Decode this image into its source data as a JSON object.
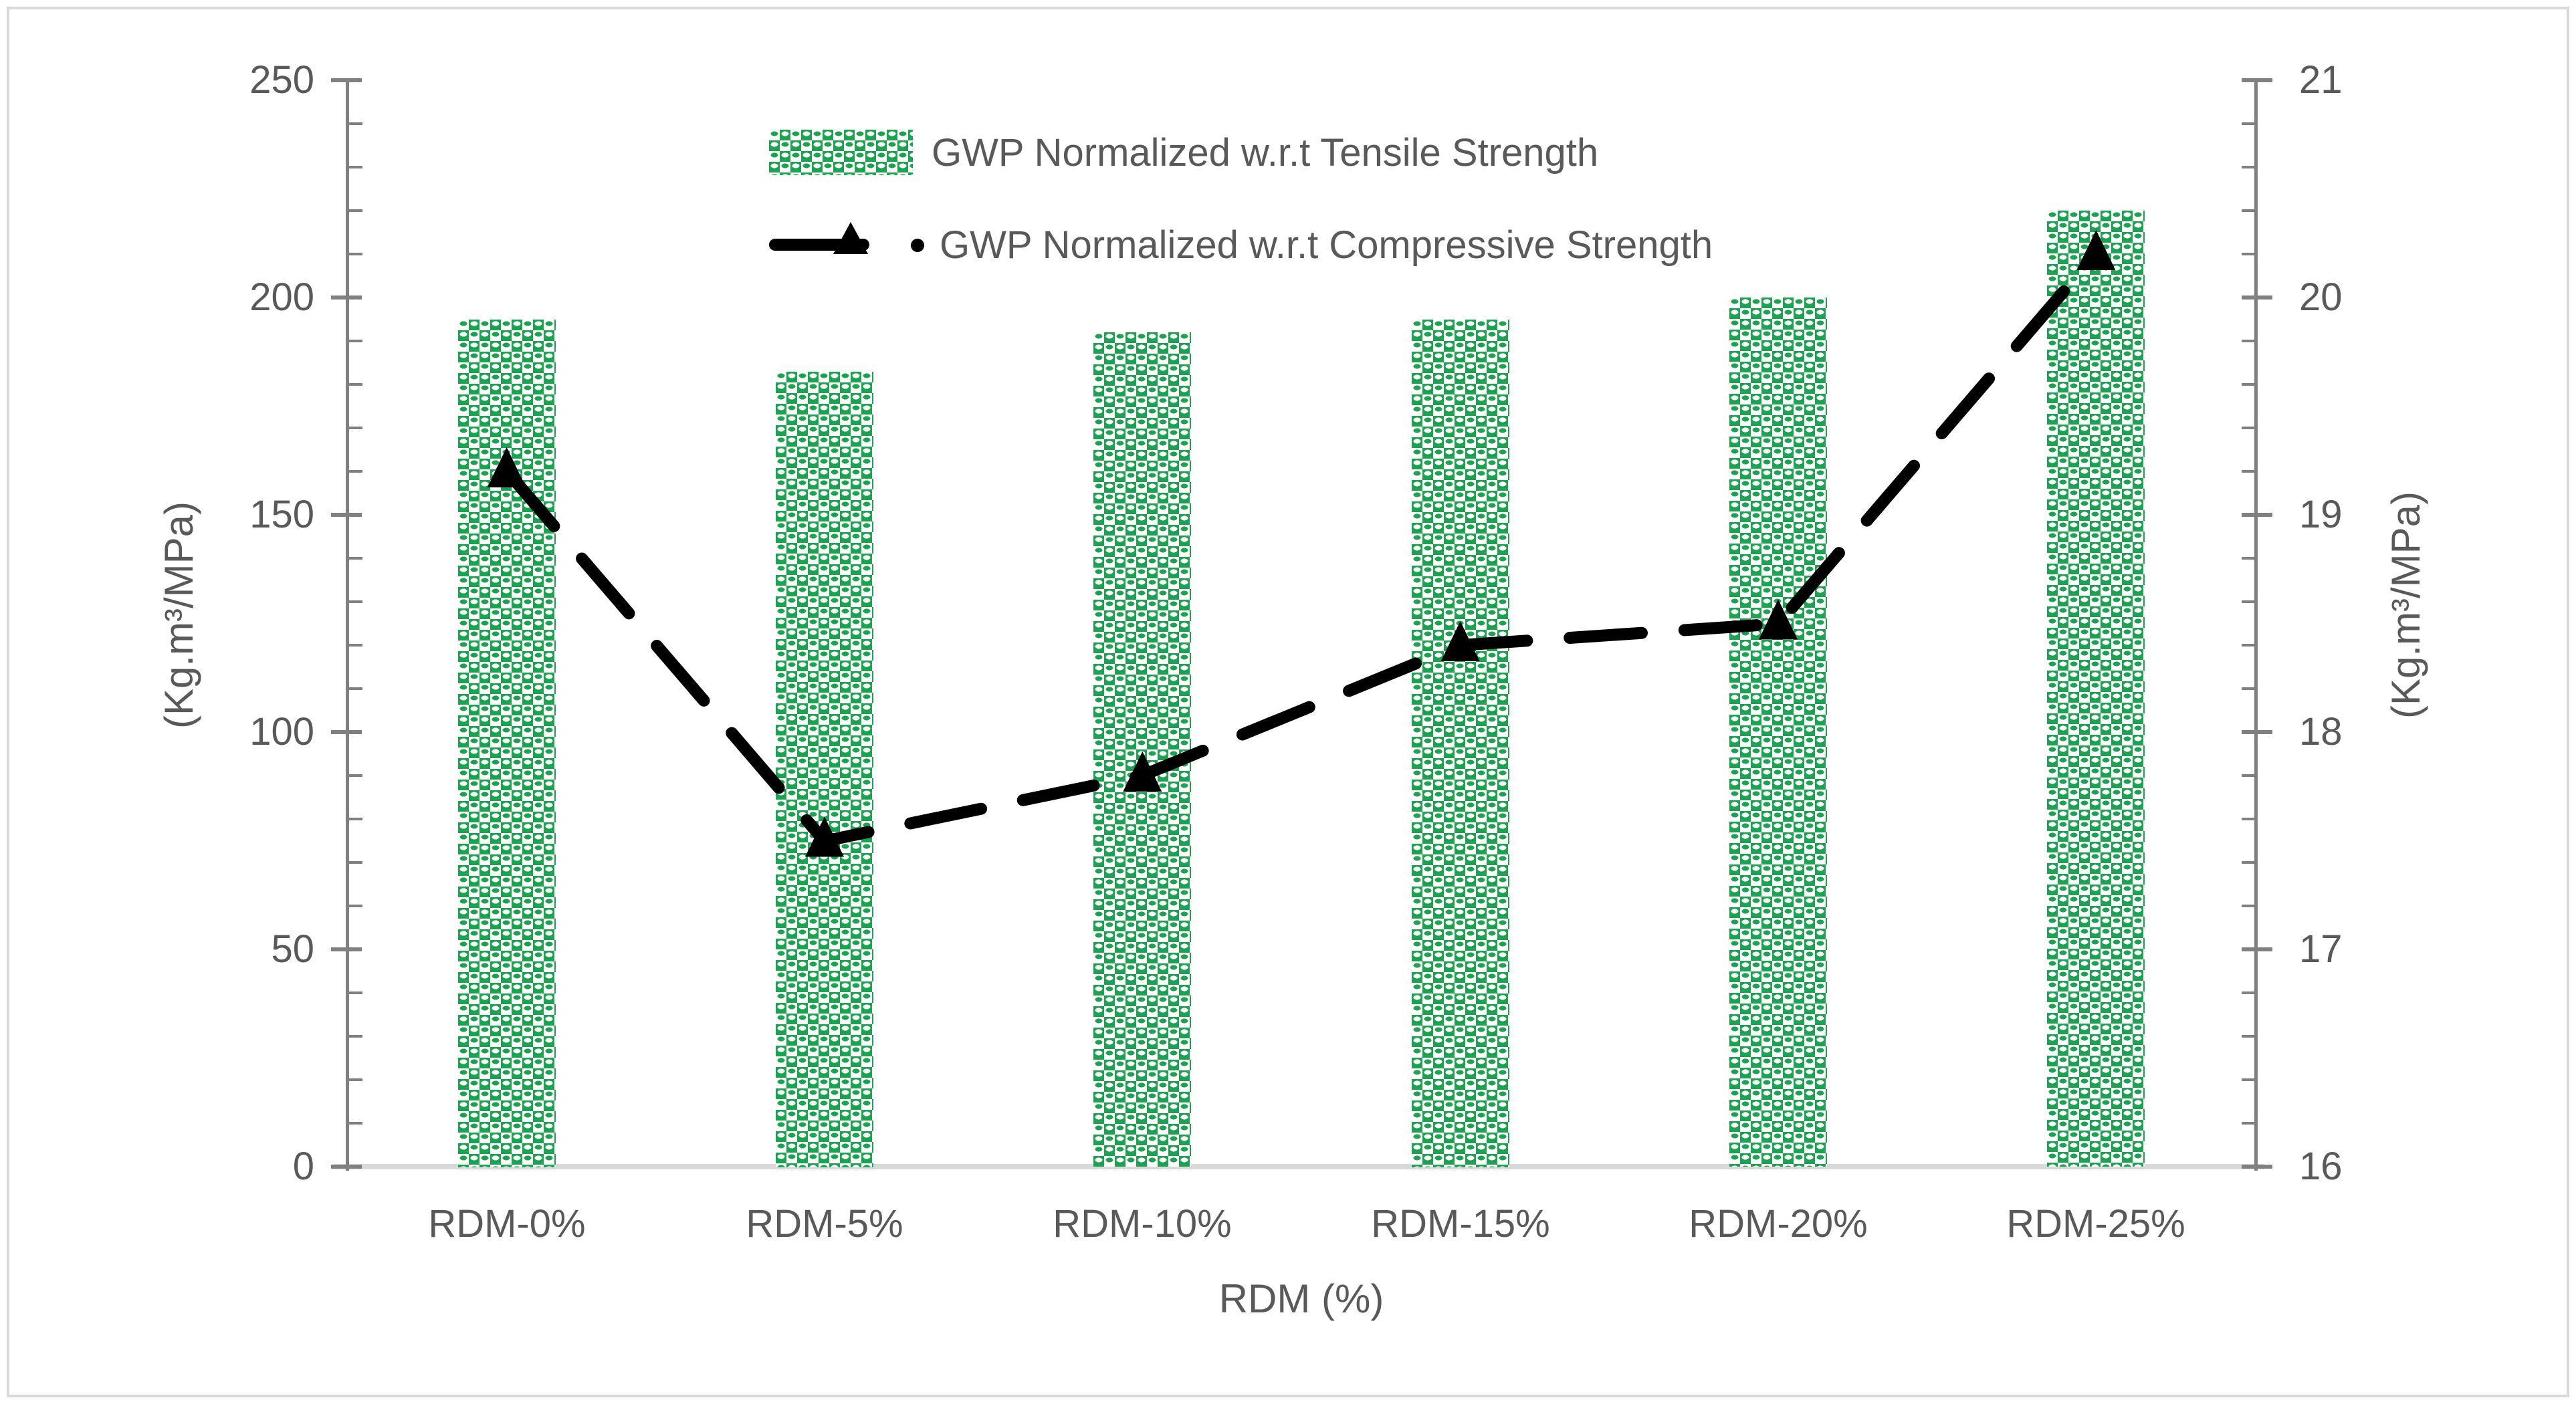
{
  "chart_data": {
    "type": "bar+line",
    "categories": [
      "RDM-0%",
      "RDM-5%",
      "RDM-10%",
      "RDM-15%",
      "RDM-20%",
      "RDM-25%"
    ],
    "series": [
      {
        "name": "GWP Normalized w.r.t Tensile Strength",
        "type": "bar",
        "axis": "left",
        "pattern": "green-white-checkerboard",
        "values": [
          195,
          183,
          192,
          195,
          200,
          220
        ]
      },
      {
        "name": "GWP Normalized w.r.t Compressive Strength",
        "type": "line",
        "axis": "right",
        "style": "dashed",
        "marker": "triangle",
        "values": [
          19.2,
          17.5,
          17.8,
          18.4,
          18.5,
          20.2
        ]
      }
    ],
    "xlabel": "RDM (%)",
    "left_axis": {
      "label": "(Kg.m³/MPa)",
      "min": 0,
      "max": 250,
      "major_step": 50,
      "minor_step": 10,
      "tick_labels": [
        "0",
        "50",
        "100",
        "150",
        "200",
        "250"
      ]
    },
    "right_axis": {
      "label": "(Kg.m³/MPa)",
      "min": 16,
      "max": 21,
      "major_step": 1,
      "minor_step": 0.2,
      "tick_labels": [
        "16",
        "17",
        "18",
        "19",
        "20",
        "21"
      ]
    },
    "grid": false,
    "legend_position": "top-center-two-rows",
    "colors": {
      "bar_green": "#1CA350",
      "line_black": "#000000",
      "axis_line_gray": "#808080",
      "text_gray": "#595959",
      "category_axis_gray": "#D9D9D9",
      "border_gray": "#D9D9D9",
      "background": "#FFFFFF"
    }
  }
}
